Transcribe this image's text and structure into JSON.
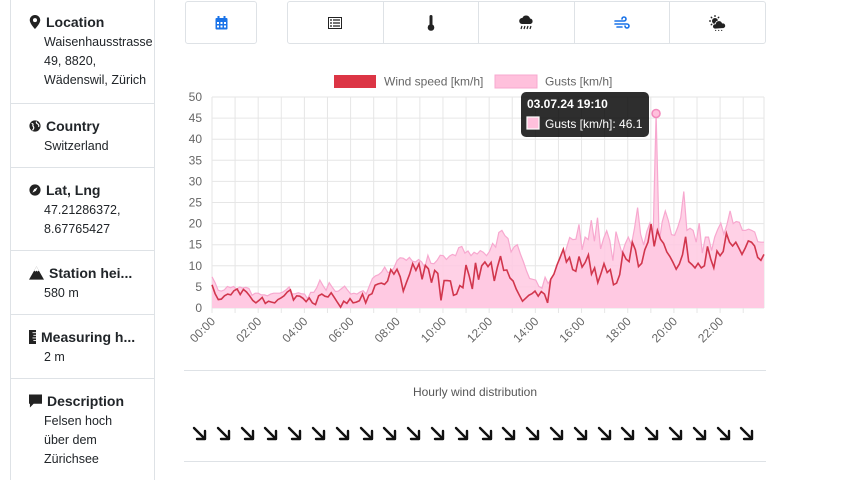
{
  "sidebar": {
    "location": {
      "title": "Location",
      "value": "Waisenhausstrasse 49, 8820, Wädenswil, Zürich"
    },
    "country": {
      "title": "Country",
      "value": "Switzerland"
    },
    "latlng": {
      "title": "Lat, Lng",
      "value": "47.21286372, 8.67765427"
    },
    "station_height": {
      "title": "Station hei...",
      "value": "580 m"
    },
    "measuring_height": {
      "title": "Measuring h...",
      "value": "2 m"
    },
    "description": {
      "title": "Description",
      "value": "Felsen hoch über dem Zürichsee"
    }
  },
  "toolbar": {
    "calendar_icon": "calendar-icon",
    "group_icons": [
      "list-icon",
      "thermometer-icon",
      "rain-cloud-icon",
      "wind-icon",
      "sun-cloud-icon"
    ],
    "accent": "#1a73e8"
  },
  "tooltip": {
    "title": "03.07.24 19:10",
    "text": "Gusts [km/h]: 46.1"
  },
  "distribution": {
    "title": "Hourly wind distribution",
    "arrow_count": 24,
    "direction": "south-east"
  },
  "chart_data": {
    "type": "area",
    "title": "",
    "xlabel": "",
    "ylabel": "",
    "ylim": [
      0,
      50
    ],
    "y_ticks": [
      0,
      5,
      10,
      15,
      20,
      25,
      30,
      35,
      40,
      45,
      50
    ],
    "x_ticks": [
      "00:00",
      "02:00",
      "04:00",
      "06:00",
      "08:00",
      "10:00",
      "12:00",
      "14:00",
      "16:00",
      "18:00",
      "20:00",
      "22:00"
    ],
    "x_start_hour": 0,
    "x_end_hour": 23.9,
    "grid": true,
    "legend_position": "top-center",
    "series": [
      {
        "name": "Wind speed [km/h]",
        "color": "#dc3545",
        "values": [
          5.5,
          3.4,
          2,
          2.1,
          2.9,
          3.3,
          3.1,
          4.1,
          4.5,
          3.2,
          4.4,
          3.8,
          2.9,
          1.8,
          1.2,
          1.8,
          2.5,
          1.1,
          1.6,
          1.4,
          1.2,
          2,
          2.4,
          2.9,
          3.8,
          4.3,
          1.9,
          2.9,
          2.8,
          2.3,
          1.5,
          2.4,
          1.2,
          0.8,
          2.9,
          3.3,
          2.8,
          2.6,
          3.6,
          2.5,
          1.3,
          0.2,
          1.6,
          1.1,
          2.2,
          1.2,
          1.4,
          1.7,
          3.3,
          1.2,
          3,
          3.4,
          5.4,
          5.7,
          5.9,
          5.6,
          6.4,
          9.1,
          8,
          9.2,
          7.4,
          4,
          6.1,
          8,
          10.5,
          8.9,
          10.5,
          6.8,
          10.1,
          9.3,
          6,
          8.9,
          8.2,
          1.8,
          6.5,
          6.5,
          6.4,
          3,
          3.3,
          5.3,
          4.8,
          10.2,
          7.6,
          4.5,
          10.7,
          6.7,
          10,
          10.9,
          9.8,
          10.8,
          6.4,
          9.7,
          12.3,
          8.9,
          9,
          7.1,
          6.4,
          4.5,
          3,
          1.6,
          2.3,
          3,
          3.4,
          4,
          2.8,
          3.9,
          3.3,
          1.2,
          6.8,
          8,
          10.2,
          12,
          13.9,
          10.9,
          12,
          9.1,
          8.7,
          12.2,
          9.7,
          10.8,
          12.6,
          8,
          9.5,
          6,
          8.1,
          10.5,
          8.4,
          9.1,
          5.5,
          5.9,
          7.9,
          13.1,
          11.6,
          11,
          15.6,
          13.8,
          9.8,
          10.6,
          13.8,
          15.6,
          19.9,
          14.6,
          18.4,
          16.3,
          15.3,
          13.3,
          12.2,
          10.8,
          9.2,
          10.4,
          12.6,
          16.9,
          11,
          10.3,
          9.5,
          10.6,
          9.5,
          10,
          14.6,
          11.6,
          9.5,
          13.5,
          12.4,
          13.4,
          17.7,
          15.6,
          14.7,
          15.6,
          14.2,
          12.7,
          14.2,
          15.9,
          15.6,
          14.7,
          12,
          11.3,
          12.7
        ]
      },
      {
        "name": "Gusts [km/h]",
        "color": "#ffc0dc",
        "values": [
          7.4,
          6,
          4.2,
          4,
          4.3,
          5.1,
          4.8,
          5.1,
          4.4,
          5,
          4.7,
          4.9,
          4.6,
          3,
          3.5,
          3.5,
          3.1,
          3.1,
          2.9,
          3.3,
          3.5,
          3.5,
          3.5,
          3.8,
          4.3,
          5,
          3.3,
          3.4,
          3.6,
          3.4,
          3.3,
          2.2,
          3.7,
          3.7,
          4.8,
          6.6,
          5.3,
          4.2,
          6,
          4.9,
          3.9,
          4,
          4.6,
          5.2,
          4.2,
          3.3,
          3.5,
          3.3,
          3.8,
          4.1,
          3.3,
          5.2,
          7,
          7.6,
          7.9,
          8.5,
          9.7,
          8.4,
          8.6,
          9.5,
          11.2,
          11.9,
          11.8,
          11.3,
          12,
          11.1,
          10.9,
          11.5,
          10.9,
          9.6,
          12.5,
          10.6,
          10.5,
          11.3,
          12.5,
          12.4,
          11.5,
          12.3,
          12.7,
          12.4,
          14.3,
          14.6,
          13,
          13.5,
          12.4,
          13.2,
          12.8,
          13.6,
          13.2,
          12.4,
          13.4,
          15.3,
          14.4,
          17.9,
          18.4,
          17.1,
          16.5,
          13.3,
          14.5,
          15,
          12.8,
          10.9,
          8.8,
          7,
          6.8,
          6.6,
          5.1,
          4.7,
          7.3,
          5.8,
          6.9,
          4.9,
          6.5,
          10.6,
          11.8,
          14.3,
          16.7,
          16.2,
          16.3,
          19.8,
          13.8,
          16.8,
          16.2,
          20.8,
          15.8,
          21.4,
          14,
          16.5,
          18.3,
          16,
          11.2,
          18.1,
          15.4,
          12.9,
          15.2,
          16.8,
          15,
          18.9,
          23.8,
          17.5,
          14.9,
          18.1,
          20.1,
          16,
          46.1,
          15.7,
          20.4,
          23,
          20.7,
          17.4,
          17.2,
          19.1,
          21.4,
          27.6,
          18.4,
          18.9,
          18.4,
          15.6,
          20.1,
          13,
          16.8,
          16.8,
          13.6,
          16.8,
          18.6,
          20.1,
          17.5,
          19.8,
          23,
          20,
          20.5,
          20.3,
          18.4,
          18.4,
          18.7,
          18.4,
          18,
          15.7,
          15.6,
          15.6
        ]
      }
    ]
  }
}
